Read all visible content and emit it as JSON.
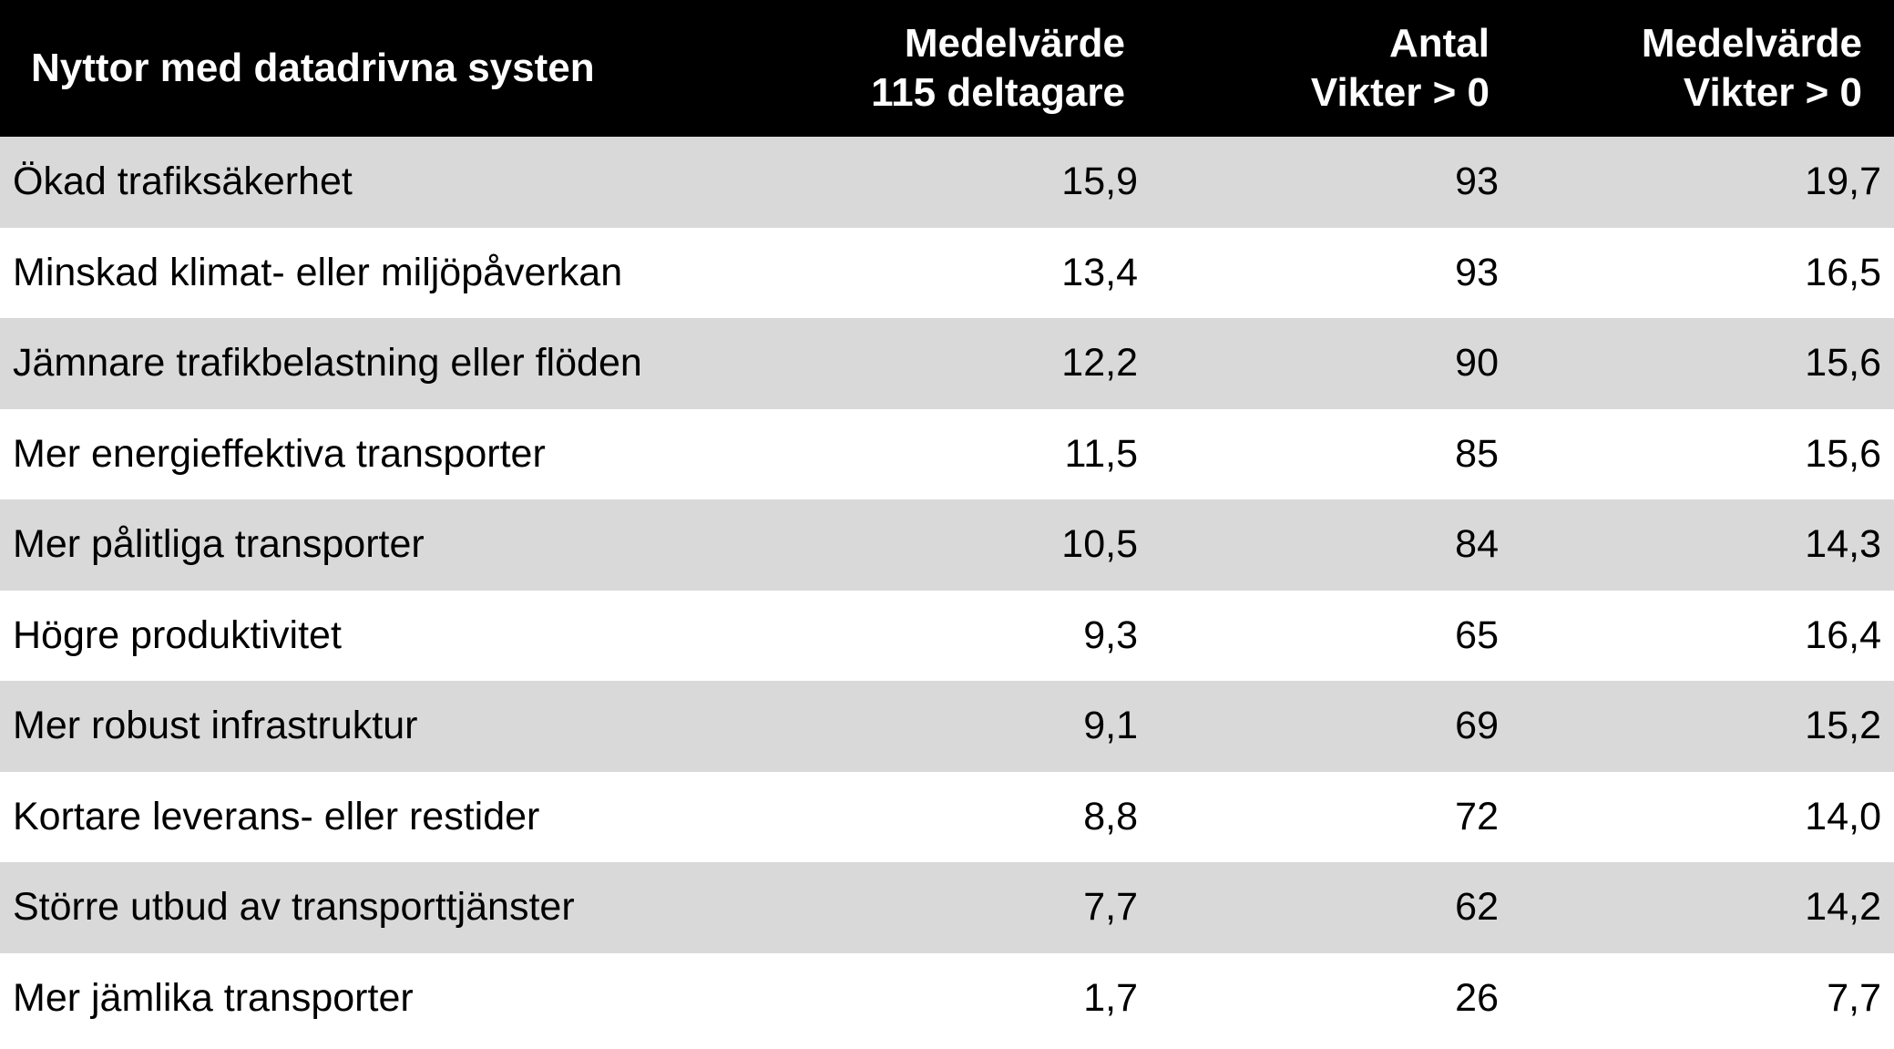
{
  "table": {
    "headers": {
      "benefit": "Nyttor med datadrivna systen",
      "mean_all_line1": "Medelvärde",
      "mean_all_line2": "115 deltagare",
      "count_line1": "Antal",
      "count_line2": "Vikter > 0",
      "mean_pos_line1": "Medelvärde",
      "mean_pos_line2": "Vikter > 0"
    },
    "rows": [
      {
        "benefit": "Ökad trafiksäkerhet",
        "mean_all": "15,9",
        "count": "93",
        "mean_pos": "19,7"
      },
      {
        "benefit": "Minskad klimat- eller miljöpåverkan",
        "mean_all": "13,4",
        "count": "93",
        "mean_pos": "16,5"
      },
      {
        "benefit": "Jämnare trafikbelastning eller flöden",
        "mean_all": "12,2",
        "count": "90",
        "mean_pos": "15,6"
      },
      {
        "benefit": "Mer energieffektiva transporter",
        "mean_all": "11,5",
        "count": "85",
        "mean_pos": "15,6"
      },
      {
        "benefit": "Mer pålitliga transporter",
        "mean_all": "10,5",
        "count": "84",
        "mean_pos": "14,3"
      },
      {
        "benefit": "Högre produktivitet",
        "mean_all": "9,3",
        "count": "65",
        "mean_pos": "16,4"
      },
      {
        "benefit": "Mer robust infrastruktur",
        "mean_all": "9,1",
        "count": "69",
        "mean_pos": "15,2"
      },
      {
        "benefit": "Kortare leverans- eller restider",
        "mean_all": "8,8",
        "count": "72",
        "mean_pos": "14,0"
      },
      {
        "benefit": "Större utbud av transporttjänster",
        "mean_all": "7,7",
        "count": "62",
        "mean_pos": "14,2"
      },
      {
        "benefit": "Mer jämlika transporter",
        "mean_all": "1,7",
        "count": "26",
        "mean_pos": "7,7"
      }
    ]
  },
  "colors": {
    "header_background": "#000000",
    "header_text": "#ffffff",
    "shaded_row": "#d9d9d9",
    "plain_row": "#ffffff"
  }
}
